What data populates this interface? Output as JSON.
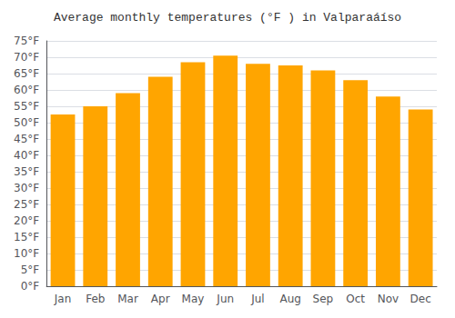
{
  "chart_data": {
    "type": "bar",
    "title": "Average monthly temperatures (°F ) in Valparaáíso",
    "categories": [
      "Jan",
      "Feb",
      "Mar",
      "Apr",
      "May",
      "Jun",
      "Jul",
      "Aug",
      "Sep",
      "Oct",
      "Nov",
      "Dec"
    ],
    "values": [
      52.5,
      55.0,
      59.0,
      64.0,
      68.5,
      70.5,
      68.0,
      67.5,
      66.0,
      63.0,
      58.0,
      54.0
    ],
    "color": "#FFA500",
    "ylim": [
      0,
      75
    ],
    "yticks": [
      {
        "value": 0,
        "label": "0°F"
      },
      {
        "value": 5,
        "label": "5°F"
      },
      {
        "value": 10,
        "label": "10°F"
      },
      {
        "value": 15,
        "label": "15°F"
      },
      {
        "value": 20,
        "label": "20°F"
      },
      {
        "value": 25,
        "label": "25°F"
      },
      {
        "value": 30,
        "label": "30°F"
      },
      {
        "value": 35,
        "label": "35°F"
      },
      {
        "value": 40,
        "label": "40°F"
      },
      {
        "value": 45,
        "label": "45°F"
      },
      {
        "value": 50,
        "label": "50°F"
      },
      {
        "value": 55,
        "label": "55°F"
      },
      {
        "value": 60,
        "label": "60°F"
      },
      {
        "value": 65,
        "label": "65°F"
      },
      {
        "value": 70,
        "label": "70°F"
      },
      {
        "value": 75,
        "label": "75°F"
      }
    ],
    "grid": true
  }
}
